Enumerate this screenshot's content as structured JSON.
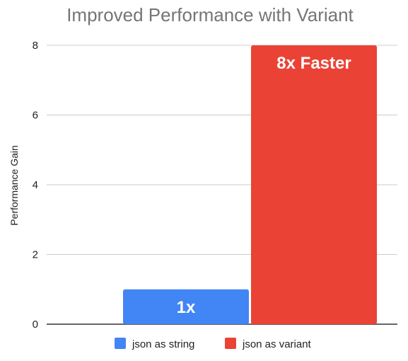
{
  "chart_data": {
    "type": "bar",
    "title": "Improved Performance with Variant",
    "xlabel": "",
    "ylabel": "Performance Gain",
    "ylim": [
      0,
      8
    ],
    "y_ticks": [
      0,
      2,
      4,
      6,
      8
    ],
    "grid": true,
    "legend_position": "bottom",
    "categories": [
      ""
    ],
    "series": [
      {
        "name": "json as string",
        "color": "#4285f4",
        "values": [
          1
        ],
        "data_label": "1x"
      },
      {
        "name": "json as variant",
        "color": "#ea4335",
        "values": [
          8
        ],
        "data_label": "8x Faster"
      }
    ]
  }
}
